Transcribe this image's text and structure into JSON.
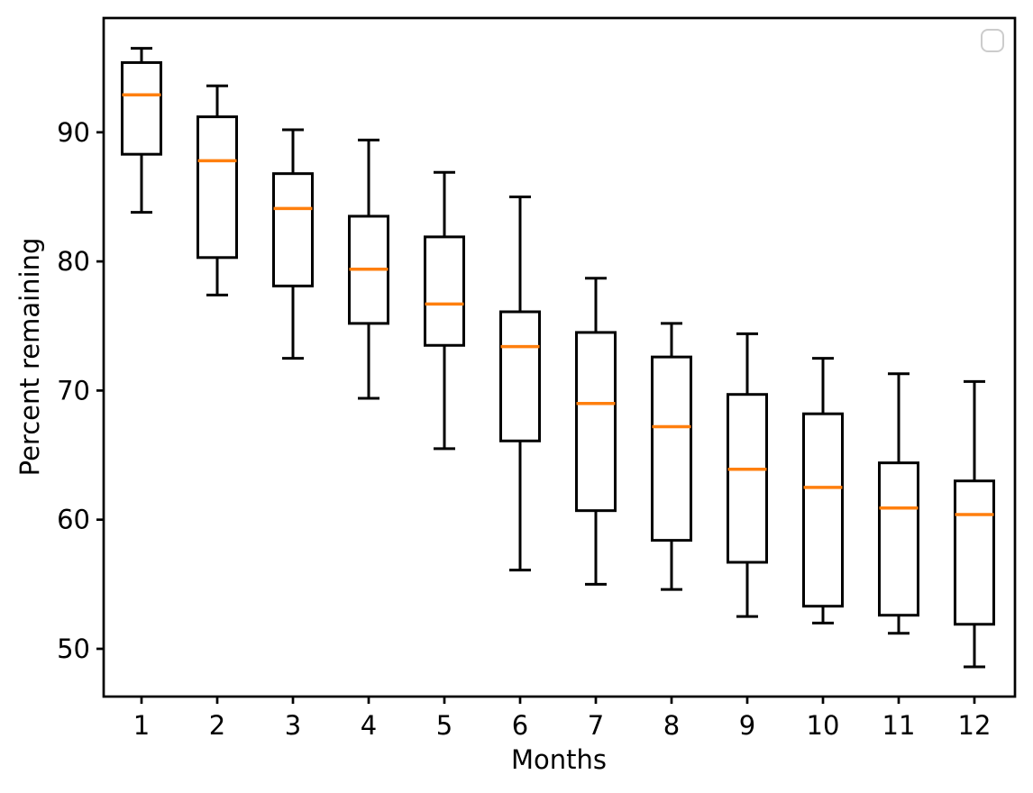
{
  "chart_data": {
    "type": "boxplot",
    "title": "",
    "xlabel": "Months",
    "ylabel": "Percent remaining",
    "categories": [
      "1",
      "2",
      "3",
      "4",
      "5",
      "6",
      "7",
      "8",
      "9",
      "10",
      "11",
      "12"
    ],
    "boxes": [
      {
        "month": 1,
        "whisker_low": 83.8,
        "q1": 88.3,
        "median": 92.9,
        "q3": 95.4,
        "whisker_high": 96.5
      },
      {
        "month": 2,
        "whisker_low": 77.4,
        "q1": 80.3,
        "median": 87.8,
        "q3": 91.2,
        "whisker_high": 93.6
      },
      {
        "month": 3,
        "whisker_low": 72.5,
        "q1": 78.1,
        "median": 84.1,
        "q3": 86.8,
        "whisker_high": 90.2
      },
      {
        "month": 4,
        "whisker_low": 69.4,
        "q1": 75.2,
        "median": 79.4,
        "q3": 83.5,
        "whisker_high": 89.4
      },
      {
        "month": 5,
        "whisker_low": 65.5,
        "q1": 73.5,
        "median": 76.7,
        "q3": 81.9,
        "whisker_high": 86.9
      },
      {
        "month": 6,
        "whisker_low": 56.1,
        "q1": 66.1,
        "median": 73.4,
        "q3": 76.1,
        "whisker_high": 85.0
      },
      {
        "month": 7,
        "whisker_low": 55.0,
        "q1": 60.7,
        "median": 69.0,
        "q3": 74.5,
        "whisker_high": 78.7
      },
      {
        "month": 8,
        "whisker_low": 54.6,
        "q1": 58.4,
        "median": 67.2,
        "q3": 72.6,
        "whisker_high": 75.2
      },
      {
        "month": 9,
        "whisker_low": 52.5,
        "q1": 56.7,
        "median": 63.9,
        "q3": 69.7,
        "whisker_high": 74.4
      },
      {
        "month": 10,
        "whisker_low": 52.0,
        "q1": 53.3,
        "median": 62.5,
        "q3": 68.2,
        "whisker_high": 72.5
      },
      {
        "month": 11,
        "whisker_low": 51.2,
        "q1": 52.6,
        "median": 60.9,
        "q3": 64.4,
        "whisker_high": 71.3
      },
      {
        "month": 12,
        "whisker_low": 48.6,
        "q1": 51.9,
        "median": 60.4,
        "q3": 63.0,
        "whisker_high": 70.7
      }
    ],
    "yticks": [
      50,
      60,
      70,
      80,
      90
    ],
    "ylim": [
      46.3,
      98.85
    ],
    "grid": false,
    "legend": {
      "visible": true,
      "entries": [],
      "position": "upper right"
    },
    "colors": {
      "median": "#ff7f0e",
      "box_edge": "#000000",
      "background": "#ffffff",
      "legend_border": "#cccccc"
    }
  }
}
